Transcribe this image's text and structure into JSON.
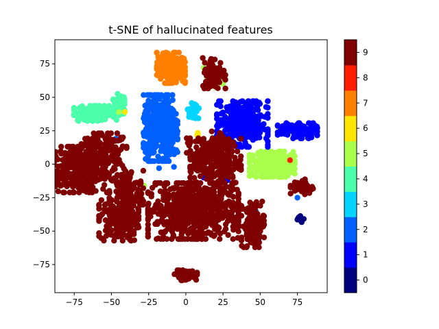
{
  "chart_data": {
    "type": "scatter",
    "title": "t-SNE of hallucinated features",
    "xlabel": "",
    "ylabel": "",
    "xlim": [
      -88,
      95
    ],
    "ylim": [
      -96,
      93
    ],
    "xticks": [
      -75,
      -50,
      -25,
      0,
      25,
      50,
      75
    ],
    "yticks": [
      -75,
      -50,
      -25,
      0,
      25,
      50,
      75
    ],
    "grid": false,
    "colorbar": {
      "ticks": [
        0,
        1,
        2,
        3,
        4,
        5,
        6,
        7,
        8,
        9
      ],
      "colors": [
        "#00007f",
        "#0000fe",
        "#0060ff",
        "#00d4ff",
        "#4cffaa",
        "#aaff4c",
        "#ffe500",
        "#ff7f00",
        "#ff1e00",
        "#7f0000"
      ]
    },
    "clusters": [
      {
        "label": 9,
        "cx": -72,
        "cy": -4,
        "sx": 10,
        "sy": 9,
        "n": 380
      },
      {
        "label": 9,
        "cx": -55,
        "cy": 6,
        "sx": 8,
        "sy": 9,
        "n": 180
      },
      {
        "label": 9,
        "cx": -40,
        "cy": -22,
        "sx": 6,
        "sy": 9,
        "n": 140
      },
      {
        "label": 9,
        "cx": -45,
        "cy": -42,
        "sx": 7,
        "sy": 8,
        "n": 180
      },
      {
        "label": 9,
        "cx": 5,
        "cy": -35,
        "sx": 16,
        "sy": 11,
        "n": 650
      },
      {
        "label": 9,
        "cx": 20,
        "cy": 0,
        "sx": 9,
        "sy": 10,
        "n": 180
      },
      {
        "label": 9,
        "cx": 25,
        "cy": 15,
        "sx": 4,
        "sy": 5,
        "n": 60
      },
      {
        "label": 9,
        "cx": 19,
        "cy": 68,
        "sx": 4,
        "sy": 6,
        "n": 90
      },
      {
        "label": 9,
        "cx": 0,
        "cy": -83,
        "sx": 4,
        "sy": 2,
        "n": 60
      },
      {
        "label": 9,
        "cx": 45,
        "cy": -45,
        "sx": 4,
        "sy": 9,
        "n": 110
      },
      {
        "label": 9,
        "cx": 78,
        "cy": -17,
        "sx": 4,
        "sy": 3,
        "n": 40
      },
      {
        "label": 9,
        "cx": 12,
        "cy": 8,
        "sx": 6,
        "sy": 6,
        "n": 60
      },
      {
        "label": 7,
        "cx": -10,
        "cy": 72,
        "sx": 5,
        "sy": 6,
        "n": 240
      },
      {
        "label": 4,
        "cx": -60,
        "cy": 38,
        "sx": 8,
        "sy": 3,
        "n": 170
      },
      {
        "label": 4,
        "cx": -45,
        "cy": 45,
        "sx": 2,
        "sy": 4,
        "n": 50
      },
      {
        "label": 2,
        "cx": -17,
        "cy": 27,
        "sx": 6,
        "sy": 13,
        "n": 400
      },
      {
        "label": 3,
        "cx": 5,
        "cy": 40,
        "sx": 2,
        "sy": 3,
        "n": 40
      },
      {
        "label": 1,
        "cx": 38,
        "cy": 30,
        "sx": 9,
        "sy": 9,
        "n": 330
      },
      {
        "label": 1,
        "cx": 75,
        "cy": 25,
        "sx": 7,
        "sy": 3,
        "n": 140
      },
      {
        "label": 5,
        "cx": 58,
        "cy": 0,
        "sx": 8,
        "sy": 5,
        "n": 260
      },
      {
        "label": 5,
        "cx": 18,
        "cy": 63,
        "sx": 3,
        "sy": 3,
        "n": 30
      },
      {
        "label": 0,
        "cx": 77,
        "cy": -41,
        "sx": 1.2,
        "sy": 1.2,
        "n": 12
      },
      {
        "label": 6,
        "cx": 8,
        "cy": 22,
        "sx": 0.8,
        "sy": 0.8,
        "n": 4
      },
      {
        "label": 8,
        "cx": 10,
        "cy": 9,
        "sx": 1,
        "sy": 1,
        "n": 4
      }
    ],
    "scatter_extras": [
      {
        "label": 2,
        "x": -18,
        "y": -3
      },
      {
        "label": 2,
        "x": -8,
        "y": -2
      },
      {
        "label": 1,
        "x": 12,
        "y": -10
      },
      {
        "label": 2,
        "x": 47,
        "y": -35
      },
      {
        "label": 2,
        "x": 49,
        "y": -57
      },
      {
        "label": 2,
        "x": 75,
        "y": -25
      },
      {
        "label": 5,
        "x": 25,
        "y": 60
      },
      {
        "label": 5,
        "x": 12,
        "y": 72
      },
      {
        "label": 5,
        "x": -45,
        "y": 39
      },
      {
        "label": 6,
        "x": -41,
        "y": 39
      },
      {
        "label": 8,
        "x": 70,
        "y": 3
      },
      {
        "label": 5,
        "x": -28,
        "y": -16
      },
      {
        "label": 1,
        "x": 28,
        "y": -12
      },
      {
        "label": 2,
        "x": -47,
        "y": 19
      }
    ]
  }
}
